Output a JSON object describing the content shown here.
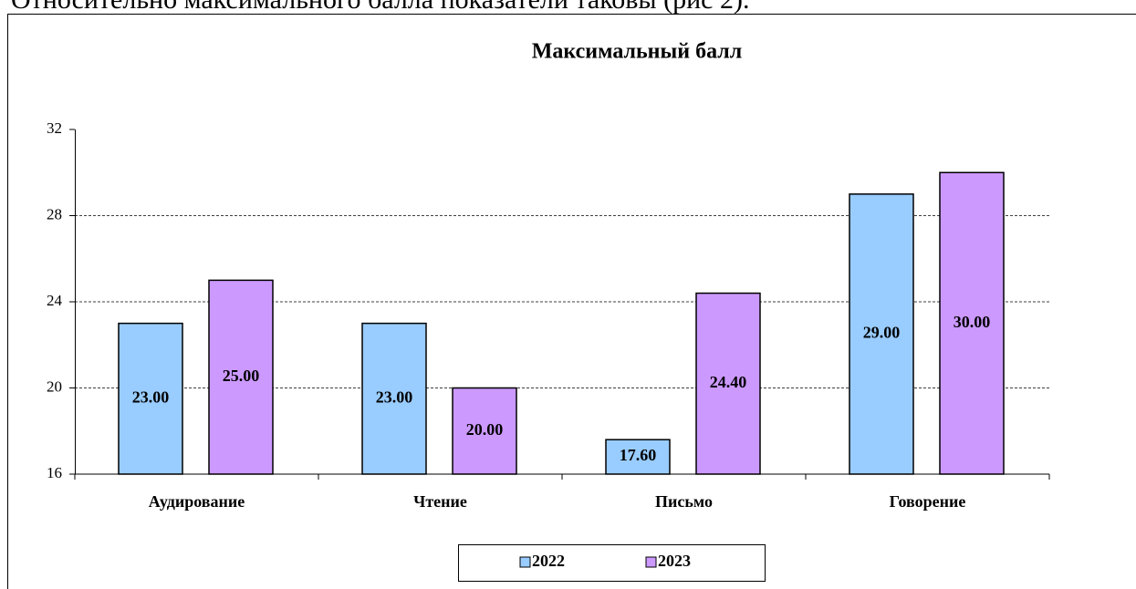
{
  "intro": "Относительно максимального балла показатели таковы (рис 2).",
  "chart_data": {
    "type": "bar",
    "title": "Максимальный балл",
    "categories": [
      "Аудирование",
      "Чтение",
      "Письмо",
      "Говорение"
    ],
    "series": [
      {
        "name": "2022",
        "color": "#99ccff",
        "values": [
          23,
          23,
          17.6,
          29
        ],
        "value_labels": [
          "23.00",
          "23.00",
          "17.60",
          "29.00"
        ]
      },
      {
        "name": "2023",
        "color": "#cc99ff",
        "values": [
          25,
          20,
          24.4,
          30
        ],
        "value_labels": [
          "25.00",
          "20.00",
          "24.40",
          "30.00"
        ]
      }
    ],
    "ylim": [
      16,
      32
    ],
    "yticks": [
      16,
      20,
      24,
      28,
      32
    ],
    "grid": true,
    "legend": "bottom"
  }
}
